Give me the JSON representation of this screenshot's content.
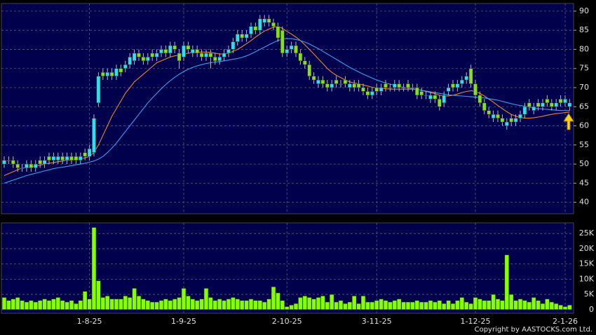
{
  "chart_data": {
    "type": "candlestick",
    "copyright": "Copyright by AASTOCKS.com Ltd.",
    "categories": [
      null,
      null,
      null,
      null,
      null,
      null,
      null,
      null,
      null,
      null,
      null,
      null,
      null,
      null,
      null,
      null,
      null,
      null,
      null,
      "1-8-25",
      null,
      null,
      null,
      null,
      null,
      null,
      null,
      null,
      null,
      null,
      null,
      null,
      null,
      null,
      null,
      null,
      null,
      null,
      null,
      null,
      "1-9-25",
      null,
      null,
      null,
      null,
      null,
      null,
      null,
      null,
      null,
      null,
      null,
      null,
      null,
      null,
      null,
      null,
      null,
      null,
      null,
      null,
      null,
      null,
      "2-10-25",
      null,
      null,
      null,
      null,
      null,
      null,
      null,
      null,
      null,
      null,
      null,
      null,
      null,
      null,
      null,
      null,
      null,
      null,
      null,
      "3-11-25",
      null,
      null,
      null,
      null,
      null,
      null,
      null,
      null,
      null,
      null,
      null,
      null,
      null,
      null,
      null,
      null,
      null,
      null,
      null,
      null,
      null,
      "1-12-25",
      null,
      null,
      null,
      null,
      null,
      null,
      null,
      null,
      null,
      null,
      null,
      null,
      null,
      null,
      null,
      null,
      null,
      null,
      null,
      "2-1-26",
      null
    ],
    "open": [
      50,
      51,
      51,
      50,
      49,
      49,
      50,
      49,
      51,
      50,
      52,
      51,
      51,
      52,
      51,
      52,
      52,
      51,
      53,
      52,
      53,
      66,
      74,
      73,
      74,
      73,
      75,
      75,
      76,
      77,
      79,
      78,
      77,
      79,
      78,
      79,
      80,
      79,
      81,
      79,
      78,
      81,
      79,
      80,
      79,
      78,
      79,
      78,
      77,
      78,
      79,
      80,
      82,
      84,
      83,
      84,
      86,
      85,
      87,
      88,
      87,
      86,
      85,
      79,
      80,
      81,
      79,
      77,
      76,
      73,
      71,
      72,
      71,
      70,
      72,
      71,
      72,
      70,
      71,
      71,
      70,
      69,
      68,
      70,
      69,
      71,
      70,
      70,
      71,
      70,
      71,
      70,
      70,
      69,
      68,
      67,
      68,
      67,
      66,
      69,
      71,
      70,
      71,
      72,
      75,
      71,
      68,
      66,
      64,
      62,
      63,
      62,
      60,
      62,
      61,
      62,
      63,
      66,
      64,
      66,
      65,
      67,
      66,
      65,
      67,
      66,
      65
    ],
    "high": [
      52,
      52,
      52,
      51,
      50,
      51,
      51,
      51,
      52,
      52,
      53,
      53,
      53,
      53,
      53,
      53,
      53,
      53,
      54,
      55,
      63,
      74,
      75,
      75,
      75,
      76,
      76,
      77,
      79,
      80,
      80,
      79,
      79,
      80,
      80,
      81,
      81,
      82,
      82,
      80,
      82,
      82,
      81,
      81,
      80,
      80,
      80,
      79,
      79,
      80,
      81,
      83,
      85,
      85,
      85,
      87,
      87,
      89,
      89,
      89,
      88,
      87,
      86,
      81,
      82,
      82,
      80,
      78,
      77,
      74,
      73,
      73,
      72,
      72,
      73,
      72,
      73,
      72,
      72,
      72,
      71,
      70,
      70,
      71,
      71,
      72,
      71,
      72,
      72,
      71,
      72,
      71,
      71,
      70,
      69,
      69,
      69,
      68,
      69,
      71,
      72,
      72,
      73,
      74,
      76,
      72,
      69,
      67,
      65,
      64,
      64,
      63,
      62,
      63,
      63,
      64,
      66,
      67,
      66,
      67,
      67,
      68,
      67,
      67,
      68,
      68,
      67
    ],
    "low": [
      49,
      50,
      49,
      48,
      48,
      48,
      48,
      48,
      49,
      49,
      50,
      50,
      50,
      50,
      50,
      50,
      50,
      50,
      51,
      51,
      52,
      65,
      72,
      72,
      72,
      72,
      73,
      74,
      75,
      76,
      77,
      76,
      76,
      77,
      77,
      78,
      78,
      78,
      79,
      75,
      77,
      79,
      78,
      78,
      77,
      77,
      75,
      76,
      76,
      77,
      78,
      79,
      81,
      82,
      82,
      83,
      84,
      84,
      86,
      86,
      85,
      82,
      78,
      78,
      79,
      78,
      76,
      75,
      72,
      71,
      70,
      70,
      69,
      69,
      70,
      70,
      70,
      69,
      69,
      69,
      68,
      67,
      67,
      68,
      68,
      69,
      69,
      69,
      69,
      69,
      69,
      69,
      67,
      67,
      67,
      66,
      66,
      64,
      65,
      68,
      69,
      69,
      70,
      71,
      70,
      67,
      65,
      63,
      62,
      61,
      61,
      60,
      59,
      60,
      60,
      61,
      62,
      64,
      63,
      64,
      64,
      65,
      64,
      64,
      65,
      65,
      64
    ],
    "close": [
      51,
      51,
      50,
      49,
      49,
      50,
      49,
      50,
      50,
      51,
      51,
      52,
      52,
      51,
      52,
      51,
      51,
      52,
      52,
      54,
      62,
      73,
      73,
      74,
      73,
      75,
      74,
      76,
      78,
      79,
      78,
      77,
      78,
      78,
      79,
      80,
      79,
      81,
      80,
      77,
      81,
      80,
      80,
      79,
      78,
      79,
      78,
      77,
      78,
      79,
      80,
      82,
      84,
      83,
      84,
      86,
      85,
      88,
      88,
      87,
      86,
      83,
      79,
      80,
      81,
      79,
      77,
      76,
      73,
      72,
      72,
      71,
      70,
      71,
      71,
      71,
      71,
      71,
      70,
      70,
      69,
      68,
      69,
      69,
      70,
      70,
      70,
      71,
      70,
      70,
      70,
      70,
      68,
      68,
      68,
      68,
      67,
      65,
      68,
      70,
      70,
      71,
      72,
      73,
      71,
      68,
      66,
      64,
      63,
      63,
      62,
      61,
      61,
      61,
      62,
      63,
      65,
      65,
      65,
      65,
      66,
      66,
      65,
      66,
      66,
      67,
      66
    ],
    "up_color": "#33ddee",
    "down_color": "#88dd22",
    "ma": [
      {
        "color": "#e88a2e",
        "values": [
          47,
          47.5,
          48,
          48.5,
          49,
          49,
          49.3,
          49.5,
          49.7,
          50,
          50.2,
          50.4,
          50.6,
          50.8,
          51,
          51,
          51.2,
          51.4,
          51.6,
          52,
          53,
          55,
          57.5,
          60,
          62.5,
          64.5,
          66.5,
          68.5,
          70,
          71.5,
          72.5,
          73.5,
          74.5,
          75.5,
          76.5,
          77,
          77.5,
          78,
          78.3,
          78.5,
          78.7,
          79,
          79.2,
          79.3,
          79.3,
          79.3,
          79.2,
          79,
          78.8,
          78.8,
          79,
          79.5,
          80,
          80.7,
          81.5,
          82.3,
          83.2,
          84,
          84.8,
          85.3,
          85.8,
          86,
          85.5,
          84.7,
          84,
          83.2,
          82.3,
          81.2,
          80,
          78.8,
          77.5,
          76.3,
          75,
          74,
          73.2,
          72.6,
          72,
          71.5,
          71.2,
          71,
          70.7,
          70.4,
          70.1,
          69.9,
          69.8,
          69.7,
          69.6,
          69.6,
          69.6,
          69.6,
          69.6,
          69.6,
          69.5,
          69.3,
          69,
          68.7,
          68.4,
          68,
          67.8,
          67.8,
          68,
          68.3,
          68.7,
          69,
          69.2,
          69,
          68.5,
          67.8,
          67,
          66.2,
          65.3,
          64.5,
          63.7,
          63,
          62.5,
          62.2,
          62,
          62,
          62.1,
          62.3,
          62.5,
          62.8,
          63,
          63.2,
          63.3,
          63.5,
          63.6
        ]
      },
      {
        "color": "#3aa0f0",
        "values": [
          45,
          45.4,
          45.8,
          46.2,
          46.6,
          47,
          47.3,
          47.6,
          47.9,
          48.2,
          48.5,
          48.8,
          49,
          49.2,
          49.4,
          49.6,
          49.8,
          50,
          50.2,
          50.5,
          50.8,
          51.3,
          52,
          53,
          54.2,
          55.5,
          57,
          58.5,
          60,
          61.5,
          63,
          64.5,
          66,
          67.3,
          68.5,
          69.7,
          70.8,
          71.8,
          72.7,
          73.5,
          74.2,
          74.8,
          75.3,
          75.7,
          76,
          76.3,
          76.5,
          76.7,
          76.8,
          77,
          77.2,
          77.4,
          77.6,
          77.9,
          78.3,
          78.8,
          79.4,
          80,
          80.6,
          81.2,
          81.8,
          82.3,
          82.7,
          82.8,
          82.8,
          82.6,
          82.3,
          81.9,
          81.4,
          80.8,
          80.2,
          79.5,
          78.8,
          78.1,
          77.4,
          76.7,
          76,
          75.3,
          74.7,
          74.1,
          73.5,
          73,
          72.5,
          72,
          71.6,
          71.2,
          70.9,
          70.6,
          70.3,
          70.1,
          69.9,
          69.7,
          69.5,
          69.3,
          69.1,
          68.9,
          68.7,
          68.5,
          68.3,
          68.1,
          68,
          67.9,
          67.8,
          67.7,
          67.6,
          67.5,
          67.4,
          67.3,
          67.1,
          66.9,
          66.7,
          66.4,
          66.1,
          65.8,
          65.5,
          65.3,
          65.1,
          64.9,
          64.7,
          64.5,
          64.4,
          64.3,
          64.2,
          64.1,
          64,
          64,
          64
        ]
      }
    ],
    "ylim": [
      37,
      92
    ],
    "yticks": [
      40,
      45,
      50,
      55,
      60,
      65,
      70,
      75,
      80,
      85,
      90
    ],
    "grid": true,
    "volume": {
      "color": "#88ff00",
      "values": [
        4000,
        3000,
        3500,
        4000,
        3000,
        2500,
        3000,
        2500,
        3000,
        3500,
        3000,
        3500,
        4000,
        3000,
        2500,
        3000,
        2000,
        3000,
        6000,
        3500,
        27000,
        9500,
        4000,
        4500,
        3500,
        3500,
        3500,
        4500,
        4000,
        7000,
        4500,
        3500,
        3000,
        2500,
        2500,
        3000,
        3500,
        3000,
        3500,
        4000,
        7000,
        4500,
        3500,
        3000,
        3500,
        7000,
        4000,
        3000,
        3500,
        3000,
        3500,
        4000,
        3500,
        3000,
        3000,
        3500,
        3000,
        3000,
        2500,
        3500,
        7500,
        5500,
        3000,
        1000,
        1500,
        2000,
        4000,
        4500,
        4000,
        3500,
        4000,
        4500,
        2500,
        5000,
        2500,
        3000,
        2000,
        2500,
        4500,
        2000,
        4500,
        2500,
        2500,
        3000,
        3500,
        3000,
        2500,
        3000,
        3500,
        2500,
        2500,
        2500,
        3000,
        2500,
        2500,
        3000,
        2500,
        3000,
        2000,
        3000,
        2000,
        3000,
        4000,
        2500,
        2000,
        4000,
        3500,
        3000,
        3000,
        5000,
        3500,
        3000,
        18000,
        5000,
        3000,
        3500,
        3000,
        2500,
        4000,
        3000,
        2000,
        3500,
        2500,
        2000,
        1500,
        1000,
        1500
      ],
      "ylim": [
        -1200,
        28500
      ],
      "yticks": [
        0,
        {
          "value": 5000,
          "label": "5K"
        },
        {
          "value": 10000,
          "label": "10K"
        },
        {
          "value": 15000,
          "label": "15K"
        },
        {
          "value": 20000,
          "label": "20K"
        },
        {
          "value": 25000,
          "label": "25K"
        }
      ]
    }
  }
}
